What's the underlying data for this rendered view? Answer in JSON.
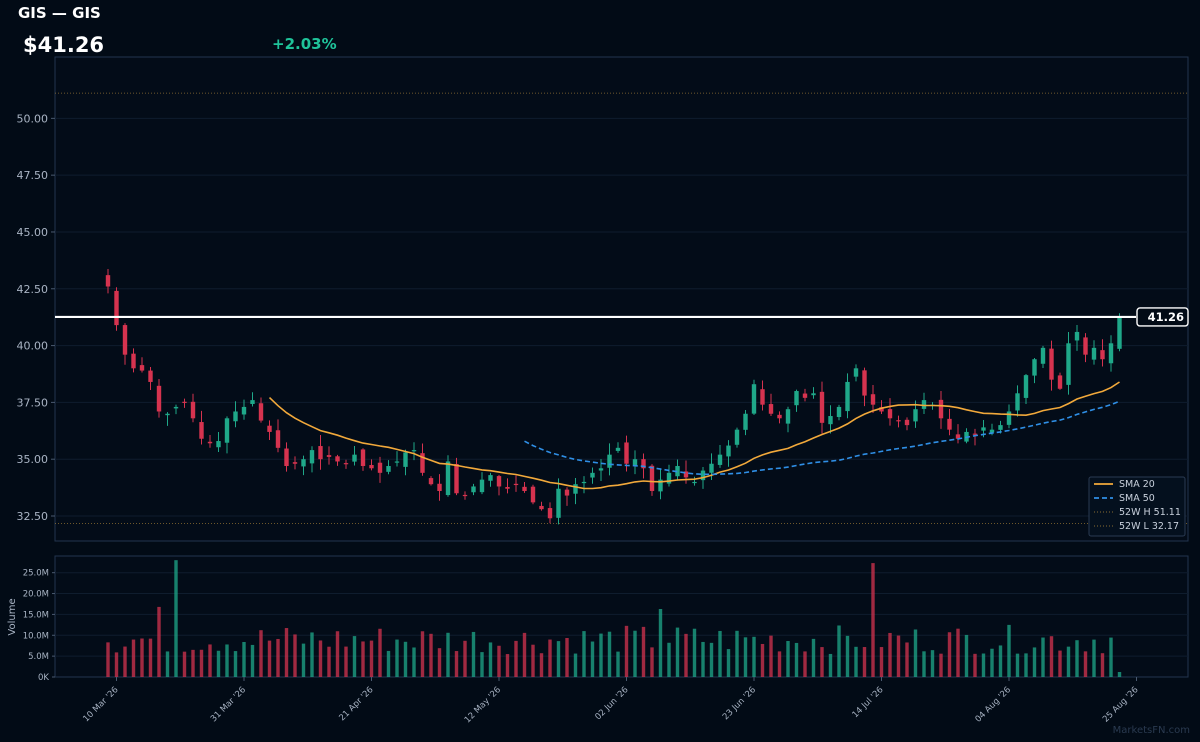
{
  "header": {
    "title": "GIS — GIS",
    "price": "$41.26",
    "change": "+2.03%"
  },
  "watermark": "MarketsFN.com",
  "colors": {
    "background": "#020b16",
    "up": "#1fa889",
    "down": "#d6334f",
    "sma20": "#f2a93b",
    "sma50": "#2f8fe6",
    "price_line": "#ffffff",
    "band": "#b58a3a"
  },
  "chart_data": {
    "type": "candlestick",
    "price_axis": {
      "ylim": [
        31.4,
        52.7
      ],
      "ticks": [
        "32.50",
        "35.00",
        "37.50",
        "40.00",
        "42.50",
        "45.00",
        "47.50",
        "50.00"
      ]
    },
    "volume_axis": {
      "label": "Volume",
      "ylim": [
        0,
        29
      ],
      "ticks": [
        "0K",
        "5.0M",
        "10.0M",
        "15.0M",
        "20.0M",
        "25.0M"
      ]
    },
    "x_ticks": [
      {
        "label": "10 Mar '26",
        "idx": 1
      },
      {
        "label": "31 Mar '26",
        "idx": 16
      },
      {
        "label": "21 Apr '26",
        "idx": 31
      },
      {
        "label": "12 May '26",
        "idx": 46
      },
      {
        "label": "02 Jun '26",
        "idx": 61
      },
      {
        "label": "23 Jun '26",
        "idx": 76
      },
      {
        "label": "14 Jul '26",
        "idx": 91
      },
      {
        "label": "04 Aug '26",
        "idx": 106
      },
      {
        "label": "25 Aug '26",
        "idx": 121
      }
    ],
    "last_price": 41.26,
    "last_price_label": "41.26",
    "high_52w": 51.11,
    "low_52w": 32.17,
    "legend": [
      "SMA 20",
      "SMA 50",
      "52W H 51.11",
      "52W L 32.17"
    ],
    "closes": [
      42.6,
      40.9,
      39.6,
      39.0,
      38.9,
      38.4,
      37.1,
      37.0,
      37.3,
      37.5,
      36.8,
      35.9,
      35.7,
      35.8,
      36.8,
      37.1,
      37.3,
      37.6,
      36.7,
      36.2,
      35.5,
      34.7,
      34.8,
      35.0,
      35.4,
      35.0,
      35.1,
      34.9,
      34.8,
      35.2,
      34.7,
      34.6,
      34.4,
      34.7,
      34.9,
      35.3,
      35.4,
      34.4,
      33.9,
      33.6,
      34.9,
      33.5,
      33.4,
      33.8,
      34.1,
      34.3,
      33.8,
      33.7,
      33.9,
      33.6,
      33.1,
      32.8,
      32.4,
      33.7,
      33.4,
      33.9,
      34.0,
      34.4,
      34.6,
      35.2,
      35.5,
      34.8,
      35.0,
      34.6,
      33.6,
      34.1,
      34.4,
      34.7,
      34.2,
      34.0,
      34.5,
      34.8,
      35.2,
      35.6,
      36.3,
      37.0,
      38.3,
      37.4,
      37.0,
      36.8,
      37.2,
      38.0,
      37.7,
      37.9,
      36.6,
      36.9,
      37.3,
      38.4,
      39.0,
      37.8,
      37.4,
      37.1,
      36.8,
      36.7,
      36.5,
      37.2,
      37.6,
      37.4,
      36.8,
      36.3,
      35.9,
      36.2,
      36.1,
      36.4,
      36.3,
      36.5,
      37.1,
      37.9,
      38.7,
      39.4,
      39.9,
      38.5,
      38.1,
      40.1,
      40.6,
      39.6,
      39.9,
      39.4,
      40.1,
      41.26
    ]
  }
}
